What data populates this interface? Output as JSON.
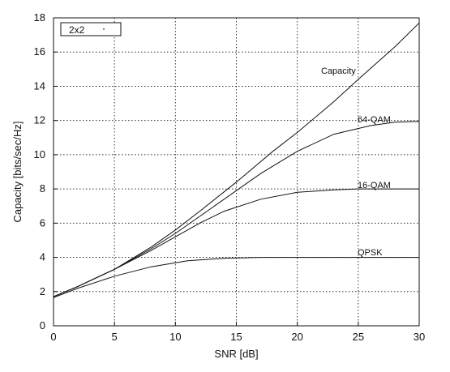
{
  "chart_data": {
    "type": "line",
    "title": "",
    "legend": {
      "placement": "top-left",
      "label": "2x2"
    },
    "xlabel": "SNR [dB]",
    "ylabel": "Capacity [bits/sec/Hz]",
    "xlim": [
      0,
      30
    ],
    "ylim": [
      0,
      18
    ],
    "xticks": [
      0,
      5,
      10,
      15,
      20,
      25,
      30
    ],
    "yticks": [
      0,
      2,
      4,
      6,
      8,
      10,
      12,
      14,
      16,
      18
    ],
    "grid": true,
    "grid_style": "dotted",
    "series": [
      {
        "name": "Capacity",
        "x": [
          0,
          2,
          5,
          8,
          10,
          12,
          15,
          18,
          20,
          23,
          25,
          28,
          30
        ],
        "y": [
          1.7,
          2.3,
          3.3,
          4.6,
          5.6,
          6.7,
          8.4,
          10.2,
          11.3,
          13.1,
          14.4,
          16.3,
          17.7
        ]
      },
      {
        "name": "64-QAM",
        "x": [
          0,
          2,
          5,
          8,
          10,
          12,
          15,
          17,
          20,
          23,
          26,
          28,
          30
        ],
        "y": [
          1.7,
          2.3,
          3.3,
          4.5,
          5.4,
          6.4,
          7.9,
          8.9,
          10.2,
          11.2,
          11.7,
          11.9,
          11.95
        ]
      },
      {
        "name": "16-QAM",
        "x": [
          0,
          2,
          5,
          8,
          10,
          12,
          14,
          17,
          20,
          23,
          25,
          28,
          30
        ],
        "y": [
          1.7,
          2.3,
          3.3,
          4.4,
          5.2,
          6.0,
          6.7,
          7.4,
          7.8,
          7.95,
          8.0,
          8.0,
          8.0
        ]
      },
      {
        "name": "QPSK",
        "x": [
          0,
          2,
          5,
          8,
          11,
          14,
          17,
          20,
          25,
          30
        ],
        "y": [
          1.65,
          2.2,
          2.9,
          3.45,
          3.8,
          3.95,
          4.0,
          4.0,
          4.0,
          4.0
        ]
      }
    ]
  }
}
